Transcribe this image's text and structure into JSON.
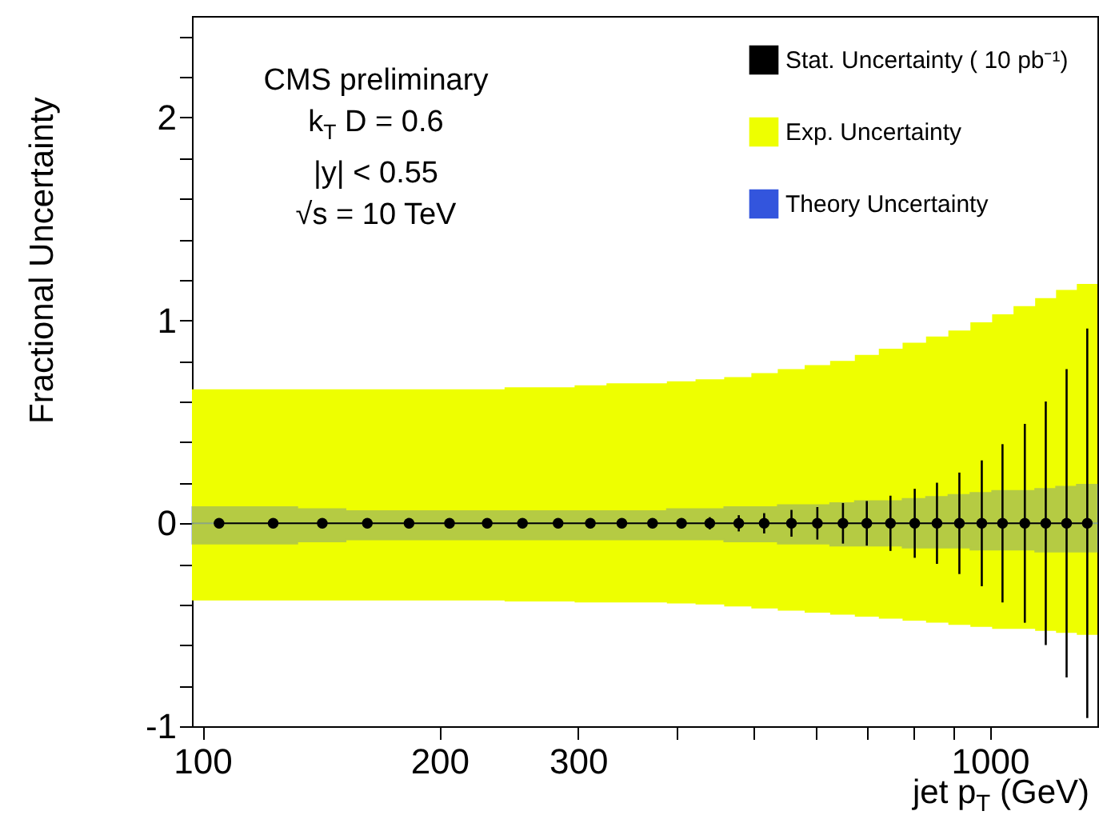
{
  "chart_data": {
    "type": "line",
    "xlabel": "jet p$_{T}$ (GeV)",
    "ylabel": "Fractional Uncertainty",
    "annotations": [
      "CMS preliminary",
      "k$_{T}$ D = 0.6",
      "|y| < 0.55",
      "√s = 10 TeV"
    ],
    "log": "x",
    "grid": false,
    "legend": "top right",
    "xlim": [
      97,
      1370
    ],
    "xticks": [
      100,
      200,
      300,
      {
        "value": 400,
        "label": null
      },
      {
        "value": 500,
        "label": null
      },
      {
        "value": 600,
        "label": null
      },
      {
        "value": 700,
        "label": null
      },
      {
        "value": 800,
        "label": null
      },
      {
        "value": 900,
        "label": null
      },
      1000
    ],
    "ylim": [
      -1,
      2.5
    ],
    "yticks": [
      -1,
      {
        "value": -0.8,
        "label": null
      },
      {
        "value": -0.6,
        "label": null
      },
      {
        "value": -0.4,
        "label": null
      },
      {
        "value": -0.2,
        "label": null
      },
      0,
      {
        "value": 0.2,
        "label": null
      },
      {
        "value": 0.4,
        "label": null
      },
      {
        "value": 0.6,
        "label": null
      },
      {
        "value": 0.8,
        "label": null
      },
      1,
      {
        "value": 1.2,
        "label": null
      },
      {
        "value": 1.4,
        "label": null
      },
      {
        "value": 1.6,
        "label": null
      },
      {
        "value": 1.8,
        "label": null
      },
      2,
      {
        "value": 2.2,
        "label": null
      },
      {
        "value": 2.4,
        "label": null
      }
    ],
    "series": [
      {
        "name": "Stat. Uncertainty ( 10 pb⁻¹)",
        "color": "#000000",
        "marker": "circle",
        "line_style": "solid",
        "x": [
          105,
          123,
          142,
          162,
          183,
          206,
          230,
          255,
          283,
          311,
          341,
          373,
          406,
          441,
          480,
          517,
          560,
          604,
          651,
          698,
          748,
          803,
          857,
          915,
          977,
          1038,
          1108,
          1178,
          1252,
          1330
        ],
        "values": [
          0,
          0,
          0,
          0,
          0,
          0,
          0,
          0,
          0,
          0,
          0,
          0,
          0,
          0,
          0,
          0,
          0,
          0,
          0,
          0,
          0,
          0,
          0,
          0,
          0,
          0,
          0,
          0,
          0,
          0
        ],
        "errors": [
          0.005,
          0.005,
          0.005,
          0.005,
          0.005,
          0.01,
          0.01,
          0.01,
          0.01,
          0.015,
          0.015,
          0.02,
          0.025,
          0.03,
          0.04,
          0.05,
          0.066,
          0.08,
          0.1,
          0.11,
          0.136,
          0.17,
          0.2,
          0.25,
          0.31,
          0.39,
          0.49,
          0.6,
          0.76,
          0.96
        ]
      },
      {
        "name": "Exp. Uncertainty",
        "type": "area",
        "color": "#eeff00",
        "x": [
          97,
          114,
          114,
          132,
          132,
          152,
          152,
          172,
          172,
          194,
          194,
          218,
          218,
          242,
          242,
          269,
          269,
          297,
          297,
          326,
          326,
          357,
          357,
          389,
          389,
          423,
          423,
          460,
          460,
          498,
          498,
          538,
          538,
          582,
          582,
          627,
          627,
          674,
          674,
          723,
          723,
          775,
          775,
          830,
          830,
          886,
          886,
          945,
          945,
          1007,
          1007,
          1072,
          1072,
          1142,
          1142,
          1214,
          1214,
          1290,
          1290,
          1370
        ],
        "values": [
          0.66,
          0.66,
          0.66,
          0.66,
          0.66,
          0.66,
          0.66,
          0.66,
          0.66,
          0.66,
          0.66,
          0.66,
          0.66,
          0.66,
          0.67,
          0.67,
          0.67,
          0.67,
          0.68,
          0.68,
          0.69,
          0.69,
          0.69,
          0.69,
          0.7,
          0.7,
          0.71,
          0.71,
          0.72,
          0.72,
          0.74,
          0.74,
          0.76,
          0.76,
          0.78,
          0.78,
          0.8,
          0.8,
          0.83,
          0.83,
          0.86,
          0.86,
          0.89,
          0.89,
          0.92,
          0.92,
          0.95,
          0.95,
          0.99,
          0.99,
          1.03,
          1.03,
          1.07,
          1.07,
          1.11,
          1.11,
          1.15,
          1.15,
          1.18,
          1.18
        ]
      },
      {
        "type": "area",
        "color": "#eeff00",
        "x": [
          97,
          114,
          114,
          132,
          132,
          152,
          152,
          172,
          172,
          194,
          194,
          218,
          218,
          242,
          242,
          269,
          269,
          297,
          297,
          326,
          326,
          357,
          357,
          389,
          389,
          423,
          423,
          460,
          460,
          498,
          498,
          538,
          538,
          582,
          582,
          627,
          627,
          674,
          674,
          723,
          723,
          775,
          775,
          830,
          830,
          886,
          886,
          945,
          945,
          1007,
          1007,
          1072,
          1072,
          1142,
          1142,
          1214,
          1214,
          1290,
          1290,
          1370
        ],
        "values": [
          -0.38,
          -0.38,
          -0.38,
          -0.38,
          -0.38,
          -0.38,
          -0.38,
          -0.38,
          -0.38,
          -0.38,
          -0.38,
          -0.38,
          -0.38,
          -0.38,
          -0.385,
          -0.385,
          -0.385,
          -0.385,
          -0.39,
          -0.39,
          -0.39,
          -0.39,
          -0.39,
          -0.39,
          -0.395,
          -0.395,
          -0.4,
          -0.4,
          -0.41,
          -0.41,
          -0.42,
          -0.42,
          -0.43,
          -0.43,
          -0.44,
          -0.44,
          -0.45,
          -0.45,
          -0.46,
          -0.46,
          -0.47,
          -0.47,
          -0.48,
          -0.48,
          -0.49,
          -0.49,
          -0.5,
          -0.5,
          -0.51,
          -0.51,
          -0.52,
          -0.52,
          -0.52,
          -0.52,
          -0.53,
          -0.53,
          -0.54,
          -0.54,
          -0.55,
          -0.55
        ]
      },
      {
        "name": "Theory Uncertainty",
        "type": "area",
        "color": "#3355dd",
        "x": [
          97,
          114,
          114,
          132,
          132,
          152,
          152,
          172,
          172,
          194,
          194,
          218,
          218,
          242,
          242,
          269,
          269,
          297,
          297,
          326,
          326,
          357,
          357,
          389,
          389,
          423,
          423,
          460,
          460,
          498,
          498,
          538,
          538,
          582,
          582,
          627,
          627,
          674,
          674,
          723,
          723,
          775,
          775,
          830,
          830,
          886,
          886,
          945,
          945,
          1007,
          1007,
          1072,
          1072,
          1142,
          1142,
          1214,
          1214,
          1290,
          1290,
          1370
        ],
        "values": [
          0.08,
          0.08,
          0.08,
          0.08,
          0.07,
          0.07,
          0.06,
          0.06,
          0.06,
          0.06,
          0.06,
          0.06,
          0.06,
          0.06,
          0.06,
          0.06,
          0.06,
          0.06,
          0.06,
          0.06,
          0.06,
          0.06,
          0.06,
          0.06,
          0.07,
          0.07,
          0.07,
          0.07,
          0.08,
          0.08,
          0.08,
          0.08,
          0.09,
          0.09,
          0.09,
          0.09,
          0.1,
          0.1,
          0.11,
          0.11,
          0.11,
          0.11,
          0.12,
          0.12,
          0.13,
          0.13,
          0.14,
          0.14,
          0.15,
          0.15,
          0.16,
          0.16,
          0.16,
          0.16,
          0.17,
          0.17,
          0.18,
          0.18,
          0.19,
          0.19
        ]
      },
      {
        "type": "area",
        "color": "#3355dd",
        "x": [
          97,
          114,
          114,
          132,
          132,
          152,
          152,
          172,
          172,
          194,
          194,
          218,
          218,
          242,
          242,
          269,
          269,
          297,
          297,
          326,
          326,
          357,
          357,
          389,
          389,
          423,
          423,
          460,
          460,
          498,
          498,
          538,
          538,
          582,
          582,
          627,
          627,
          674,
          674,
          723,
          723,
          775,
          775,
          830,
          830,
          886,
          886,
          945,
          945,
          1007,
          1007,
          1072,
          1072,
          1142,
          1142,
          1214,
          1214,
          1290,
          1290,
          1370
        ],
        "values": [
          -0.1,
          -0.1,
          -0.1,
          -0.1,
          -0.09,
          -0.09,
          -0.08,
          -0.08,
          -0.08,
          -0.08,
          -0.08,
          -0.08,
          -0.08,
          -0.08,
          -0.08,
          -0.08,
          -0.08,
          -0.08,
          -0.08,
          -0.08,
          -0.08,
          -0.08,
          -0.08,
          -0.08,
          -0.08,
          -0.08,
          -0.08,
          -0.08,
          -0.09,
          -0.09,
          -0.09,
          -0.09,
          -0.1,
          -0.1,
          -0.1,
          -0.1,
          -0.11,
          -0.11,
          -0.11,
          -0.11,
          -0.11,
          -0.11,
          -0.12,
          -0.12,
          -0.12,
          -0.12,
          -0.12,
          -0.12,
          -0.13,
          -0.13,
          -0.13,
          -0.13,
          -0.13,
          -0.13,
          -0.14,
          -0.14,
          -0.14,
          -0.14,
          -0.14,
          -0.14
        ]
      }
    ]
  }
}
